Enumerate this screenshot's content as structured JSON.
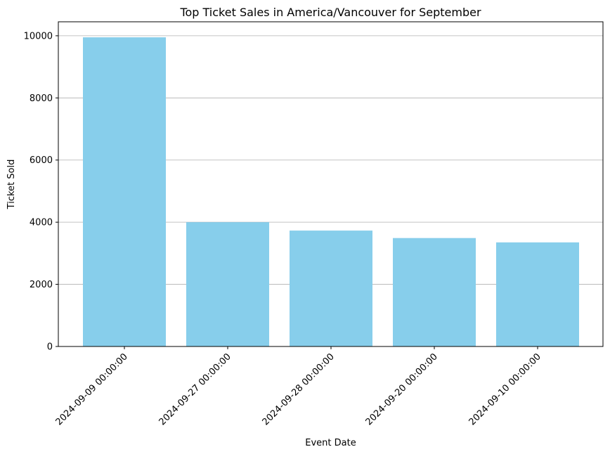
{
  "chart_data": {
    "type": "bar",
    "title": "Top Ticket Sales in America/Vancouver for September",
    "xlabel": "Event Date",
    "ylabel": "Ticket Sold",
    "categories": [
      "2024-09-09 00:00:00",
      "2024-09-27 00:00:00",
      "2024-09-28 00:00:00",
      "2024-09-20 00:00:00",
      "2024-09-10 00:00:00"
    ],
    "values": [
      9950,
      4000,
      3730,
      3490,
      3350
    ],
    "ylim": [
      0,
      10450
    ],
    "yticks": [
      0,
      2000,
      4000,
      6000,
      8000,
      10000
    ],
    "grid": "y",
    "bar_color": "#87CEEB",
    "grid_color": "#b0b0b0"
  }
}
